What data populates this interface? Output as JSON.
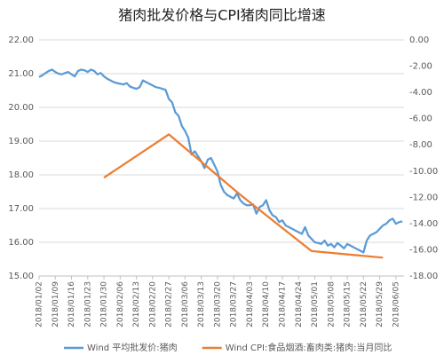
{
  "chart_data": {
    "type": "line",
    "title": "猪肉批发价格与CPI猪肉同比增速",
    "categories": [
      "2018/01/02",
      null,
      null,
      null,
      null,
      "2018/01/09",
      null,
      null,
      null,
      null,
      "2018/01/16",
      null,
      null,
      null,
      null,
      "2018/01/23",
      null,
      null,
      null,
      null,
      "2018/01/30",
      null,
      null,
      null,
      null,
      "2018/02/06",
      null,
      null,
      null,
      null,
      "2018/02/13",
      null,
      null,
      null,
      null,
      "2018/02/20",
      null,
      null,
      null,
      null,
      "2018/02/27",
      null,
      null,
      null,
      null,
      "2018/03/06",
      null,
      null,
      null,
      null,
      "2018/03/13",
      null,
      null,
      null,
      null,
      "2018/03/20",
      null,
      null,
      null,
      null,
      "2018/03/27",
      null,
      null,
      null,
      null,
      "2018/04/03",
      null,
      null,
      null,
      null,
      "2018/04/10",
      null,
      null,
      null,
      null,
      "2018/04/17",
      null,
      null,
      null,
      null,
      "2018/04/24",
      null,
      null,
      null,
      null,
      "2018/05/01",
      null,
      null,
      null,
      null,
      "2018/05/08",
      null,
      null,
      null,
      null,
      "2018/05/15",
      null,
      null,
      null,
      null,
      "2018/05/22",
      null,
      null,
      null,
      null,
      "2018/05/29",
      null,
      null,
      null,
      null,
      "2018/06/05",
      null,
      null
    ],
    "series": [
      {
        "name": "Wind 平均批发价:猪肉",
        "color": "#5b9bd5",
        "values": [
          20.9,
          20.95,
          21.02,
          21.08,
          21.12,
          21.05,
          21.0,
          20.98,
          21.02,
          21.05,
          20.98,
          20.92,
          21.08,
          21.12,
          21.1,
          21.05,
          21.12,
          21.08,
          20.98,
          21.02,
          20.92,
          20.85,
          20.8,
          20.75,
          20.72,
          20.7,
          20.68,
          20.72,
          20.62,
          20.58,
          20.55,
          20.6,
          20.8,
          20.75,
          20.7,
          20.65,
          20.6,
          20.58,
          20.55,
          20.52,
          20.25,
          20.15,
          19.85,
          19.75,
          19.45,
          19.3,
          19.1,
          18.6,
          18.7,
          18.55,
          18.4,
          18.2,
          18.45,
          18.5,
          18.3,
          18.1,
          17.7,
          17.5,
          17.4,
          17.35,
          17.3,
          17.45,
          17.25,
          17.15,
          17.1,
          17.1,
          17.12,
          16.85,
          17.05,
          17.1,
          17.25,
          16.95,
          16.8,
          16.75,
          16.6,
          16.65,
          16.5,
          16.45,
          16.4,
          16.35,
          16.3,
          16.25,
          16.45,
          16.2,
          16.1,
          16.0,
          15.98,
          15.95,
          16.05,
          15.9,
          15.95,
          15.85,
          15.98,
          15.9,
          15.82,
          15.95,
          15.9,
          15.85,
          15.8,
          15.75,
          15.7,
          16.05,
          16.2,
          16.25,
          16.3,
          16.4,
          16.5,
          16.55,
          16.65,
          16.7,
          16.55,
          16.6,
          16.62
        ]
      },
      {
        "name": "Wind CPI:食品烟酒:畜肉类:猪肉:当月同比",
        "color": "#ed7d31",
        "axis": "y2",
        "span_gaps": true,
        "values": [
          null,
          null,
          null,
          null,
          null,
          null,
          null,
          null,
          null,
          null,
          null,
          null,
          null,
          null,
          null,
          null,
          null,
          null,
          null,
          null,
          -10.5,
          null,
          null,
          null,
          null,
          null,
          null,
          null,
          null,
          null,
          null,
          null,
          null,
          null,
          null,
          null,
          null,
          null,
          null,
          null,
          -7.2,
          null,
          null,
          null,
          null,
          null,
          null,
          null,
          null,
          null,
          null,
          null,
          null,
          null,
          null,
          null,
          null,
          null,
          null,
          null,
          null,
          null,
          -11.8,
          null,
          null,
          null,
          null,
          null,
          null,
          null,
          null,
          null,
          null,
          null,
          null,
          null,
          null,
          null,
          null,
          null,
          null,
          null,
          null,
          null,
          -16.1,
          null,
          null,
          null,
          null,
          null,
          null,
          null,
          null,
          null,
          null,
          null,
          null,
          null,
          null,
          null,
          null,
          null,
          null,
          null,
          null,
          null,
          -16.6,
          null,
          null,
          null,
          null,
          null,
          null
        ]
      }
    ],
    "ylim": [
      15,
      22
    ],
    "yticks": [
      {
        "value": 15,
        "label": "15.00"
      },
      {
        "value": 16,
        "label": "16.00"
      },
      {
        "value": 17,
        "label": "17.00"
      },
      {
        "value": 18,
        "label": "18.00"
      },
      {
        "value": 19,
        "label": "19.00"
      },
      {
        "value": 20,
        "label": "20.00"
      },
      {
        "value": 21,
        "label": "21.00"
      },
      {
        "value": 22,
        "label": "22.00"
      }
    ],
    "y2lim": [
      -18,
      0
    ],
    "y2ticks": [
      {
        "value": -18,
        "label": "-18.00"
      },
      {
        "value": -16,
        "label": "-16.00"
      },
      {
        "value": -14,
        "label": "-14.00"
      },
      {
        "value": -12,
        "label": "-12.00"
      },
      {
        "value": -10,
        "label": "-10.00"
      },
      {
        "value": -8,
        "label": "-8.00"
      },
      {
        "value": -6,
        "label": "-6.00"
      },
      {
        "value": -4,
        "label": "-4.00"
      },
      {
        "value": -2,
        "label": "-2.00"
      },
      {
        "value": 0,
        "label": "0.00"
      }
    ],
    "grid": true,
    "legend": "bottom"
  }
}
